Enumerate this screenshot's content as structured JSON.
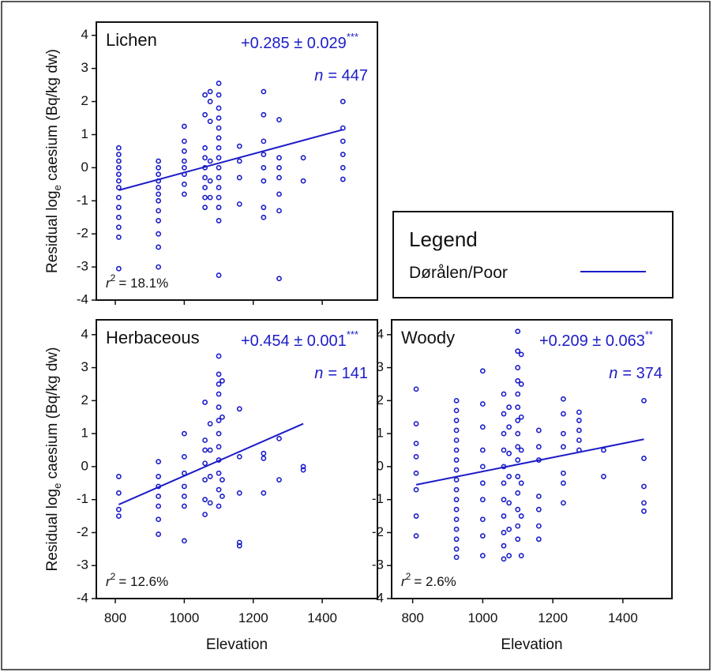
{
  "chart_data": [
    {
      "type": "scatter",
      "title": "Lichen",
      "color": "#1c1cc8",
      "stat": "+0.285 ± 0.029",
      "stars": "***",
      "n_symbol": "n",
      "n_text": "= 447",
      "r_symbol": "r",
      "r_power": "2",
      "r_text": "= 18.1%",
      "y_label": {
        "main": "Residual log",
        "sub": "e",
        "rest": " caesium (Bq/kg dw)"
      },
      "xlim": [
        745,
        1560
      ],
      "ylim": [
        -4,
        4.4
      ],
      "xticks": [
        800,
        1000,
        1200,
        1400
      ],
      "xtick_labels": false,
      "yticks": [
        -4,
        -3,
        -2,
        -1,
        0,
        1,
        2,
        3,
        4
      ],
      "fit": {
        "x": [
          810,
          1460
        ],
        "y": [
          -0.68,
          1.15
        ]
      },
      "points": [
        [
          810,
          0.6
        ],
        [
          810,
          0.4
        ],
        [
          810,
          0.2
        ],
        [
          810,
          0
        ],
        [
          810,
          -0.2
        ],
        [
          810,
          -0.4
        ],
        [
          810,
          -0.6
        ],
        [
          810,
          -0.9
        ],
        [
          810,
          -1.2
        ],
        [
          810,
          -1.5
        ],
        [
          810,
          -1.8
        ],
        [
          810,
          -2.1
        ],
        [
          810,
          -3.05
        ],
        [
          925,
          0.2
        ],
        [
          925,
          0
        ],
        [
          925,
          -0.2
        ],
        [
          925,
          -0.4
        ],
        [
          925,
          -0.6
        ],
        [
          925,
          -0.8
        ],
        [
          925,
          -1
        ],
        [
          925,
          -1.3
        ],
        [
          925,
          -1.6
        ],
        [
          925,
          -2
        ],
        [
          925,
          -2.4
        ],
        [
          925,
          -3
        ],
        [
          1000,
          1.25
        ],
        [
          1000,
          0.8
        ],
        [
          1000,
          0.5
        ],
        [
          1000,
          0.2
        ],
        [
          1000,
          0
        ],
        [
          1000,
          -0.2
        ],
        [
          1000,
          -0.5
        ],
        [
          1000,
          -0.8
        ],
        [
          1060,
          2.2
        ],
        [
          1060,
          1.6
        ],
        [
          1060,
          0.6
        ],
        [
          1060,
          0.3
        ],
        [
          1060,
          0
        ],
        [
          1060,
          -0.3
        ],
        [
          1060,
          -0.6
        ],
        [
          1060,
          -0.9
        ],
        [
          1060,
          -1.2
        ],
        [
          1075,
          2.3
        ],
        [
          1075,
          2
        ],
        [
          1075,
          1.4
        ],
        [
          1075,
          0.2
        ],
        [
          1075,
          -0.4
        ],
        [
          1075,
          -0.9
        ],
        [
          1100,
          2.55
        ],
        [
          1100,
          2.2
        ],
        [
          1100,
          1.8
        ],
        [
          1100,
          1.5
        ],
        [
          1100,
          1.2
        ],
        [
          1100,
          0.9
        ],
        [
          1100,
          0.6
        ],
        [
          1100,
          0.3
        ],
        [
          1100,
          0
        ],
        [
          1100,
          -0.3
        ],
        [
          1100,
          -0.6
        ],
        [
          1100,
          -0.9
        ],
        [
          1100,
          -1.2
        ],
        [
          1100,
          -1.6
        ],
        [
          1100,
          -3.25
        ],
        [
          1160,
          0.65
        ],
        [
          1160,
          0.2
        ],
        [
          1160,
          -0.3
        ],
        [
          1160,
          -1.1
        ],
        [
          1230,
          2.3
        ],
        [
          1230,
          1.6
        ],
        [
          1230,
          0.8
        ],
        [
          1230,
          0.4
        ],
        [
          1230,
          0
        ],
        [
          1230,
          -0.4
        ],
        [
          1230,
          -1.2
        ],
        [
          1230,
          -1.5
        ],
        [
          1275,
          1.45
        ],
        [
          1275,
          0.3
        ],
        [
          1275,
          0
        ],
        [
          1275,
          -0.3
        ],
        [
          1275,
          -0.8
        ],
        [
          1275,
          -1.3
        ],
        [
          1275,
          -3.35
        ],
        [
          1345,
          0.3
        ],
        [
          1345,
          -0.4
        ],
        [
          1460,
          2
        ],
        [
          1460,
          1.2
        ],
        [
          1460,
          0.8
        ],
        [
          1460,
          0.4
        ],
        [
          1460,
          0
        ],
        [
          1460,
          -0.35
        ]
      ]
    },
    {
      "type": "scatter",
      "title": "Herbaceous",
      "color": "#1c1cc8",
      "stat": "+0.454 ± 0.001",
      "stars": "***",
      "n_symbol": "n",
      "n_text": "= 141",
      "r_symbol": "r",
      "r_power": "2",
      "r_text": "= 12.6%",
      "y_label": {
        "main": "Residual log",
        "sub": "e",
        "rest": " caesium (Bq/kg dw)"
      },
      "x_label": "Elevation",
      "xlim": [
        745,
        1560
      ],
      "ylim": [
        -4,
        4.45
      ],
      "xticks": [
        800,
        1000,
        1200,
        1400
      ],
      "xtick_labels": true,
      "yticks": [
        -4,
        -3,
        -2,
        -1,
        0,
        1,
        2,
        3,
        4
      ],
      "fit": {
        "x": [
          810,
          1345
        ],
        "y": [
          -1.15,
          1.3
        ]
      },
      "points": [
        [
          810,
          -0.3
        ],
        [
          810,
          -0.8
        ],
        [
          810,
          -1.3
        ],
        [
          810,
          -1.5
        ],
        [
          925,
          0.15
        ],
        [
          925,
          -0.3
        ],
        [
          925,
          -0.6
        ],
        [
          925,
          -0.9
        ],
        [
          925,
          -1.2
        ],
        [
          925,
          -1.6
        ],
        [
          925,
          -2.05
        ],
        [
          1000,
          1
        ],
        [
          1000,
          0.3
        ],
        [
          1000,
          -0.2
        ],
        [
          1000,
          -0.6
        ],
        [
          1000,
          -0.9
        ],
        [
          1000,
          -1.2
        ],
        [
          1000,
          -2.25
        ],
        [
          1060,
          1.95
        ],
        [
          1060,
          0.8
        ],
        [
          1060,
          0.5
        ],
        [
          1060,
          0.1
        ],
        [
          1060,
          -0.4
        ],
        [
          1060,
          -1
        ],
        [
          1060,
          -1.45
        ],
        [
          1075,
          1.3
        ],
        [
          1075,
          0.5
        ],
        [
          1075,
          -0.3
        ],
        [
          1075,
          -1.1
        ],
        [
          1100,
          3.35
        ],
        [
          1100,
          2.8
        ],
        [
          1100,
          2.5
        ],
        [
          1100,
          2.2
        ],
        [
          1100,
          1.8
        ],
        [
          1100,
          1.4
        ],
        [
          1100,
          1
        ],
        [
          1100,
          0.6
        ],
        [
          1100,
          0.2
        ],
        [
          1100,
          -0.2
        ],
        [
          1100,
          -0.7
        ],
        [
          1100,
          -1.2
        ],
        [
          1110,
          2.6
        ],
        [
          1110,
          1.5
        ],
        [
          1110,
          -0.4
        ],
        [
          1110,
          -0.9
        ],
        [
          1160,
          1.75
        ],
        [
          1160,
          0.3
        ],
        [
          1160,
          -0.8
        ],
        [
          1160,
          -2.3
        ],
        [
          1160,
          -2.4
        ],
        [
          1230,
          0.4
        ],
        [
          1230,
          0.25
        ],
        [
          1230,
          -0.8
        ],
        [
          1275,
          0.85
        ],
        [
          1275,
          -0.4
        ],
        [
          1345,
          0
        ],
        [
          1345,
          -0.1
        ]
      ]
    },
    {
      "type": "scatter",
      "title": "Woody",
      "color": "#1c1cc8",
      "stat": "+0.209 ± 0.063",
      "stars": "**",
      "n_symbol": "n",
      "n_text": "= 374",
      "r_symbol": "r",
      "r_power": "2",
      "r_text": "= 2.6%",
      "x_label": "Elevation",
      "xlim": [
        740,
        1540
      ],
      "ylim": [
        -4,
        4.45
      ],
      "xticks": [
        800,
        1000,
        1200,
        1400
      ],
      "xtick_labels": true,
      "yticks": [
        -4,
        -3,
        -2,
        -1,
        0,
        1,
        2,
        3,
        4
      ],
      "fit": {
        "x": [
          810,
          1460
        ],
        "y": [
          -0.55,
          0.83
        ]
      },
      "points": [
        [
          810,
          2.35
        ],
        [
          810,
          1.3
        ],
        [
          810,
          0.7
        ],
        [
          810,
          0.3
        ],
        [
          810,
          -0.2
        ],
        [
          810,
          -0.7
        ],
        [
          810,
          -1.5
        ],
        [
          810,
          -2.1
        ],
        [
          925,
          2
        ],
        [
          925,
          1.7
        ],
        [
          925,
          1.4
        ],
        [
          925,
          1.1
        ],
        [
          925,
          0.8
        ],
        [
          925,
          0.5
        ],
        [
          925,
          0.2
        ],
        [
          925,
          -0.1
        ],
        [
          925,
          -0.4
        ],
        [
          925,
          -0.7
        ],
        [
          925,
          -1
        ],
        [
          925,
          -1.3
        ],
        [
          925,
          -1.6
        ],
        [
          925,
          -1.9
        ],
        [
          925,
          -2.2
        ],
        [
          925,
          -2.5
        ],
        [
          925,
          -2.75
        ],
        [
          1000,
          2.9
        ],
        [
          1000,
          1.9
        ],
        [
          1000,
          1.2
        ],
        [
          1000,
          0.5
        ],
        [
          1000,
          0
        ],
        [
          1000,
          -0.5
        ],
        [
          1000,
          -1
        ],
        [
          1000,
          -1.6
        ],
        [
          1000,
          -2.1
        ],
        [
          1000,
          -2.7
        ],
        [
          1060,
          2.2
        ],
        [
          1060,
          1.6
        ],
        [
          1060,
          1
        ],
        [
          1060,
          0.5
        ],
        [
          1060,
          0
        ],
        [
          1060,
          -0.5
        ],
        [
          1060,
          -1
        ],
        [
          1060,
          -1.5
        ],
        [
          1060,
          -2
        ],
        [
          1060,
          -2.4
        ],
        [
          1060,
          -2.8
        ],
        [
          1075,
          1.8
        ],
        [
          1075,
          1.2
        ],
        [
          1075,
          0.4
        ],
        [
          1075,
          -0.3
        ],
        [
          1075,
          -1.1
        ],
        [
          1075,
          -1.9
        ],
        [
          1075,
          -2.7
        ],
        [
          1100,
          4.1
        ],
        [
          1100,
          3.5
        ],
        [
          1100,
          3
        ],
        [
          1100,
          2.6
        ],
        [
          1100,
          2.2
        ],
        [
          1100,
          1.8
        ],
        [
          1100,
          1.4
        ],
        [
          1100,
          1
        ],
        [
          1100,
          0.6
        ],
        [
          1100,
          0.2
        ],
        [
          1100,
          -0.3
        ],
        [
          1100,
          -0.8
        ],
        [
          1100,
          -1.3
        ],
        [
          1100,
          -1.8
        ],
        [
          1100,
          -2.2
        ],
        [
          1110,
          3.4
        ],
        [
          1110,
          2.5
        ],
        [
          1110,
          1.5
        ],
        [
          1110,
          0.5
        ],
        [
          1110,
          -0.5
        ],
        [
          1110,
          -1.5
        ],
        [
          1110,
          -2.7
        ],
        [
          1160,
          1.1
        ],
        [
          1160,
          0.6
        ],
        [
          1160,
          0.2
        ],
        [
          1160,
          -0.9
        ],
        [
          1160,
          -1.3
        ],
        [
          1160,
          -1.8
        ],
        [
          1160,
          -2.2
        ],
        [
          1230,
          2.05
        ],
        [
          1230,
          1.6
        ],
        [
          1230,
          1
        ],
        [
          1230,
          0.6
        ],
        [
          1230,
          -0.2
        ],
        [
          1230,
          -0.5
        ],
        [
          1230,
          -1.1
        ],
        [
          1275,
          1.65
        ],
        [
          1275,
          1.4
        ],
        [
          1275,
          1.1
        ],
        [
          1275,
          0.8
        ],
        [
          1275,
          0.5
        ],
        [
          1345,
          0.5
        ],
        [
          1345,
          -0.3
        ],
        [
          1460,
          2
        ],
        [
          1460,
          0.25
        ],
        [
          1460,
          -0.6
        ],
        [
          1460,
          -1.1
        ],
        [
          1460,
          -1.35
        ]
      ]
    }
  ],
  "legend": {
    "title": "Legend",
    "entry": "Dørålen/Poor",
    "color": "#1c1cc8"
  }
}
